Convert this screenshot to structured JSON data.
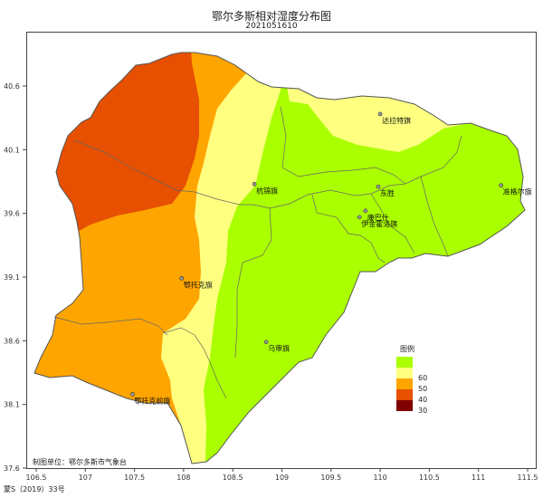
{
  "title": "鄂尔多斯相对湿度分布图",
  "subtitle": "2021051610",
  "credit": "制图单位：鄂尔多斯市气象台",
  "approval": "蒙S（2019）33号",
  "legend": {
    "title": "图例",
    "items": [
      {
        "label": "",
        "color": "#aaff00"
      },
      {
        "label": "60",
        "color": "#ffff80"
      },
      {
        "label": "50",
        "color": "#ffa500"
      },
      {
        "label": "40",
        "color": "#e65000"
      },
      {
        "label": "30",
        "color": "#800000"
      }
    ]
  },
  "axes": {
    "lon_ticks": [
      "106.5",
      "107",
      "107.5",
      "108",
      "108.5",
      "109",
      "109.5",
      "110",
      "110.5",
      "111",
      "111.5"
    ],
    "lat_ticks": [
      "40.6",
      "40.1",
      "39.6",
      "39.1",
      "38.6",
      "38.1",
      "37.6"
    ]
  },
  "places": [
    {
      "name": "达拉特旗",
      "lon": 110.0,
      "lat": 40.38
    },
    {
      "name": "杭锦旗",
      "lon": 108.72,
      "lat": 39.83
    },
    {
      "name": "东胜",
      "lon": 109.98,
      "lat": 39.81
    },
    {
      "name": "准格尔旗",
      "lon": 111.23,
      "lat": 39.82
    },
    {
      "name": "康巴什",
      "lon": 109.85,
      "lat": 39.62
    },
    {
      "name": "伊金霍洛旗",
      "lon": 109.79,
      "lat": 39.57
    },
    {
      "name": "鄂托克旗",
      "lon": 107.98,
      "lat": 39.09
    },
    {
      "name": "乌审旗",
      "lon": 108.84,
      "lat": 38.59
    },
    {
      "name": "鄂托克前旗",
      "lon": 107.48,
      "lat": 38.18
    }
  ]
}
